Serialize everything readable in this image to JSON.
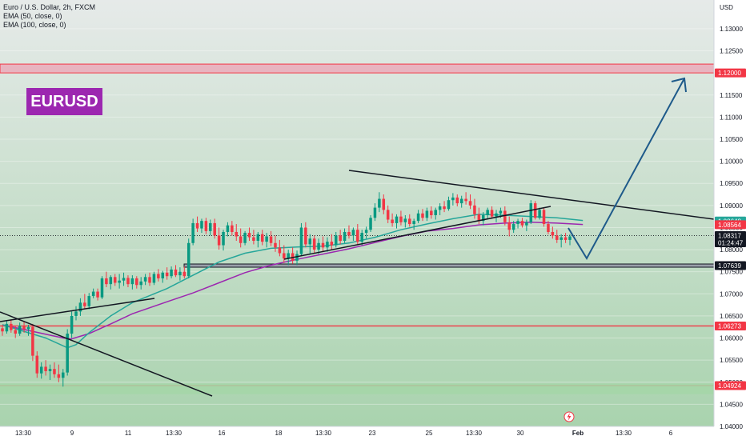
{
  "legend": {
    "symbol_line": "Euro / U.S. Dollar, 2h, FXCM",
    "ema50_line": "EMA (50, close, 0)",
    "ema100_line": "EMA (100, close, 0)"
  },
  "watermark": {
    "text": "EURUSD",
    "color": "#9c27b0"
  },
  "colors": {
    "ema50": "#26a69a",
    "ema100": "#9c27b0",
    "up_candle": "#089981",
    "down_candle": "#f23645",
    "support_red": "#f23645",
    "trend_line": "#131722",
    "projection": "#1e5a8a",
    "green_zone": "#a5d6a7",
    "bg_top": "#e6eae9",
    "bg_bottom": "#a9d3ae"
  },
  "chart_data": {
    "type": "candlestick",
    "currency_label": "USD",
    "ylim": [
      1.04,
      1.1365
    ],
    "y_ticks": [
      "1.13000",
      "1.12500",
      "1.12000",
      "1.11500",
      "1.11000",
      "1.10500",
      "1.10000",
      "1.09500",
      "1.09000",
      "1.08500",
      "1.08000",
      "1.07500",
      "1.07000",
      "1.06500",
      "1.06000",
      "1.05500",
      "1.05000",
      "1.04500",
      "1.04000"
    ],
    "x_ticks": [
      "13:30",
      "9",
      "11",
      "13:30",
      "16",
      "18",
      "13:30",
      "23",
      "25",
      "13:30",
      "30",
      "Feb",
      "13:30",
      "6"
    ],
    "price_tags": [
      {
        "label": "1.12000",
        "value": 1.12,
        "bg": "#f23645",
        "fg": "#ffffff"
      },
      {
        "label": "1.08648",
        "value": 1.08648,
        "bg": "#26a69a",
        "fg": "#ffffff"
      },
      {
        "label": "1.08564",
        "value": 1.08564,
        "bg": "#f23645",
        "fg": "#ffffff"
      },
      {
        "label": "1.08317",
        "value": 1.08317,
        "bg": "#131722",
        "fg": "#ffffff",
        "sub": "01:24:47"
      },
      {
        "label": "1.07639",
        "value": 1.07639,
        "bg": "#131722",
        "fg": "#ffffff"
      },
      {
        "label": "1.06273",
        "value": 1.06273,
        "bg": "#f23645",
        "fg": "#ffffff"
      },
      {
        "label": "1.04924",
        "value": 1.04924,
        "bg": "#f23645",
        "fg": "#ffffff"
      }
    ],
    "last_price": 1.08317,
    "horizontal_levels": [
      {
        "name": "resistance-zone",
        "from": 1.12,
        "to": 1.122,
        "color": "#f23645"
      },
      {
        "name": "support-1.07639",
        "value": 1.07639,
        "color": "#131722"
      },
      {
        "name": "support-1.06273",
        "value": 1.06273,
        "color": "#f23645"
      },
      {
        "name": "support-1.04924",
        "value": 1.04924,
        "color": "#f23645"
      }
    ],
    "green_zone": {
      "from": 1.0473,
      "to": 1.0497
    },
    "ohlc": [
      [
        1.0622,
        1.063,
        1.0605,
        1.0615
      ],
      [
        1.0615,
        1.064,
        1.061,
        1.0632
      ],
      [
        1.0632,
        1.0642,
        1.0612,
        1.0618
      ],
      [
        1.0618,
        1.0628,
        1.06,
        1.061
      ],
      [
        1.061,
        1.0635,
        1.0605,
        1.0628
      ],
      [
        1.0628,
        1.0638,
        1.0612,
        1.062
      ],
      [
        1.062,
        1.063,
        1.0605,
        1.0625
      ],
      [
        1.0625,
        1.0632,
        1.0548,
        1.056
      ],
      [
        1.056,
        1.057,
        1.051,
        1.052
      ],
      [
        1.052,
        1.0545,
        1.0508,
        1.0535
      ],
      [
        1.0535,
        1.055,
        1.0515,
        1.0525
      ],
      [
        1.0525,
        1.054,
        1.0505,
        1.053
      ],
      [
        1.053,
        1.0545,
        1.051,
        1.0518
      ],
      [
        1.0518,
        1.054,
        1.05,
        1.051
      ],
      [
        1.051,
        1.053,
        1.049,
        1.0522
      ],
      [
        1.0522,
        1.062,
        1.0515,
        1.061
      ],
      [
        1.061,
        1.066,
        1.06,
        1.065
      ],
      [
        1.065,
        1.0672,
        1.064,
        1.066
      ],
      [
        1.066,
        1.069,
        1.065,
        1.068
      ],
      [
        1.068,
        1.07,
        1.0665,
        1.0672
      ],
      [
        1.0672,
        1.0702,
        1.0665,
        1.0695
      ],
      [
        1.0695,
        1.0712,
        1.069,
        1.0705
      ],
      [
        1.0705,
        1.0712,
        1.0685,
        1.0692
      ],
      [
        1.0692,
        1.074,
        1.0688,
        1.0735
      ],
      [
        1.0735,
        1.075,
        1.0715,
        1.0722
      ],
      [
        1.0722,
        1.0742,
        1.071,
        1.0738
      ],
      [
        1.0738,
        1.0745,
        1.0718,
        1.0725
      ],
      [
        1.0725,
        1.0745,
        1.0712,
        1.073
      ],
      [
        1.073,
        1.0748,
        1.0718,
        1.0736
      ],
      [
        1.0736,
        1.0742,
        1.0715,
        1.0722
      ],
      [
        1.0722,
        1.0742,
        1.071,
        1.0735
      ],
      [
        1.0735,
        1.074,
        1.0712,
        1.072
      ],
      [
        1.072,
        1.0738,
        1.071,
        1.0728
      ],
      [
        1.0728,
        1.0745,
        1.072,
        1.0738
      ],
      [
        1.0738,
        1.0748,
        1.0718,
        1.0725
      ],
      [
        1.0725,
        1.075,
        1.072,
        1.0745
      ],
      [
        1.0745,
        1.0756,
        1.0728,
        1.0735
      ],
      [
        1.0735,
        1.0752,
        1.0725,
        1.0748
      ],
      [
        1.0748,
        1.076,
        1.0732,
        1.074
      ],
      [
        1.074,
        1.0762,
        1.0735,
        1.0755
      ],
      [
        1.0755,
        1.0765,
        1.0738,
        1.0742
      ],
      [
        1.0742,
        1.076,
        1.073,
        1.075
      ],
      [
        1.075,
        1.0762,
        1.0735,
        1.074
      ],
      [
        1.074,
        1.0825,
        1.0735,
        1.0815
      ],
      [
        1.0815,
        1.087,
        1.081,
        1.086
      ],
      [
        1.086,
        1.0875,
        1.084,
        1.0848
      ],
      [
        1.0848,
        1.087,
        1.0838,
        1.0865
      ],
      [
        1.0865,
        1.0872,
        1.0835,
        1.0842
      ],
      [
        1.0842,
        1.0868,
        1.0832,
        1.086
      ],
      [
        1.086,
        1.087,
        1.0825,
        1.0832
      ],
      [
        1.0832,
        1.085,
        1.08,
        1.081
      ],
      [
        1.081,
        1.0845,
        1.0798,
        1.084
      ],
      [
        1.084,
        1.0862,
        1.083,
        1.0855
      ],
      [
        1.0855,
        1.0865,
        1.0832,
        1.084
      ],
      [
        1.084,
        1.0858,
        1.082,
        1.083
      ],
      [
        1.083,
        1.0848,
        1.0805,
        1.0815
      ],
      [
        1.0815,
        1.0842,
        1.081,
        1.0838
      ],
      [
        1.0838,
        1.085,
        1.082,
        1.0828
      ],
      [
        1.0828,
        1.0845,
        1.0812,
        1.082
      ],
      [
        1.082,
        1.084,
        1.0805,
        1.0835
      ],
      [
        1.0835,
        1.0845,
        1.081,
        1.0818
      ],
      [
        1.0818,
        1.0838,
        1.0805,
        1.083
      ],
      [
        1.083,
        1.0842,
        1.0808,
        1.0815
      ],
      [
        1.0815,
        1.0832,
        1.0795,
        1.0805
      ],
      [
        1.0805,
        1.0822,
        1.0785,
        1.0792
      ],
      [
        1.0792,
        1.081,
        1.077,
        1.078
      ],
      [
        1.078,
        1.08,
        1.0765,
        1.0792
      ],
      [
        1.0792,
        1.0805,
        1.0768,
        1.0775
      ],
      [
        1.0775,
        1.0798,
        1.0765,
        1.079
      ],
      [
        1.079,
        1.086,
        1.0785,
        1.085
      ],
      [
        1.085,
        1.0862,
        1.0805,
        1.0812
      ],
      [
        1.0812,
        1.0835,
        1.079,
        1.0825
      ],
      [
        1.0825,
        1.0832,
        1.0792,
        1.08
      ],
      [
        1.08,
        1.0825,
        1.079,
        1.0815
      ],
      [
        1.0815,
        1.083,
        1.0795,
        1.0805
      ],
      [
        1.0805,
        1.0828,
        1.0795,
        1.0818
      ],
      [
        1.0818,
        1.0835,
        1.08,
        1.081
      ],
      [
        1.081,
        1.084,
        1.0805,
        1.0832
      ],
      [
        1.0832,
        1.0845,
        1.0812,
        1.082
      ],
      [
        1.082,
        1.0848,
        1.0815,
        1.084
      ],
      [
        1.084,
        1.0855,
        1.0825,
        1.0832
      ],
      [
        1.0832,
        1.085,
        1.082,
        1.0845
      ],
      [
        1.0845,
        1.0858,
        1.081,
        1.0818
      ],
      [
        1.0818,
        1.0845,
        1.081,
        1.0838
      ],
      [
        1.0838,
        1.0852,
        1.0825,
        1.0845
      ],
      [
        1.0845,
        1.0878,
        1.084,
        1.0872
      ],
      [
        1.0872,
        1.0905,
        1.0865,
        1.0895
      ],
      [
        1.0895,
        1.093,
        1.0885,
        1.0915
      ],
      [
        1.0915,
        1.0925,
        1.088,
        1.089
      ],
      [
        1.089,
        1.09,
        1.086,
        1.0868
      ],
      [
        1.0868,
        1.0882,
        1.0852,
        1.086
      ],
      [
        1.086,
        1.088,
        1.0848,
        1.0875
      ],
      [
        1.0875,
        1.0888,
        1.0855,
        1.0862
      ],
      [
        1.0862,
        1.0878,
        1.085,
        1.087
      ],
      [
        1.087,
        1.088,
        1.0852,
        1.0858
      ],
      [
        1.0858,
        1.087,
        1.0845,
        1.0865
      ],
      [
        1.0865,
        1.089,
        1.086,
        1.0882
      ],
      [
        1.0882,
        1.0892,
        1.0865,
        1.0872
      ],
      [
        1.0872,
        1.0895,
        1.0865,
        1.0888
      ],
      [
        1.0888,
        1.0898,
        1.087,
        1.0878
      ],
      [
        1.0878,
        1.0895,
        1.0868,
        1.089
      ],
      [
        1.089,
        1.0905,
        1.0878,
        1.0898
      ],
      [
        1.0898,
        1.091,
        1.0885,
        1.0892
      ],
      [
        1.0892,
        1.092,
        1.0888,
        1.0912
      ],
      [
        1.0912,
        1.0928,
        1.09,
        1.0918
      ],
      [
        1.0918,
        1.0925,
        1.0898,
        1.0905
      ],
      [
        1.0905,
        1.0922,
        1.0895,
        1.0915
      ],
      [
        1.0915,
        1.093,
        1.0902,
        1.091
      ],
      [
        1.091,
        1.0925,
        1.0892,
        1.09
      ],
      [
        1.09,
        1.0915,
        1.087,
        1.088
      ],
      [
        1.088,
        1.0895,
        1.0858,
        1.0865
      ],
      [
        1.0865,
        1.0885,
        1.0855,
        1.0878
      ],
      [
        1.0878,
        1.0895,
        1.0868,
        1.089
      ],
      [
        1.089,
        1.0898,
        1.087,
        1.0875
      ],
      [
        1.0875,
        1.089,
        1.0862,
        1.0882
      ],
      [
        1.0882,
        1.0895,
        1.0872,
        1.0888
      ],
      [
        1.0888,
        1.0898,
        1.0855,
        1.0862
      ],
      [
        1.0862,
        1.0875,
        1.083,
        1.0845
      ],
      [
        1.0845,
        1.0865,
        1.0838,
        1.0858
      ],
      [
        1.0858,
        1.087,
        1.0848,
        1.0865
      ],
      [
        1.0865,
        1.0872,
        1.085,
        1.0855
      ],
      [
        1.0855,
        1.0868,
        1.0842,
        1.0862
      ],
      [
        1.0862,
        1.0912,
        1.0858,
        1.0905
      ],
      [
        1.0905,
        1.091,
        1.0868,
        1.0872
      ],
      [
        1.0872,
        1.0895,
        1.0868,
        1.089
      ],
      [
        1.089,
        1.0895,
        1.0852,
        1.0858
      ],
      [
        1.0858,
        1.0865,
        1.0835,
        1.084
      ],
      [
        1.084,
        1.0852,
        1.0825,
        1.0832
      ],
      [
        1.0832,
        1.0845,
        1.0815,
        1.0822
      ],
      [
        1.0822,
        1.0835,
        1.0805,
        1.0828
      ],
      [
        1.0828,
        1.0838,
        1.0815,
        1.0822
      ],
      [
        1.0822,
        1.0835,
        1.081,
        1.083
      ]
    ],
    "ema50": [
      [
        0,
        1.063
      ],
      [
        10,
        1.06
      ],
      [
        15,
        1.0578
      ],
      [
        17,
        1.0585
      ],
      [
        20,
        1.0612
      ],
      [
        25,
        1.065
      ],
      [
        30,
        1.068
      ],
      [
        38,
        1.0712
      ],
      [
        44,
        1.0742
      ],
      [
        50,
        1.0772
      ],
      [
        56,
        1.0792
      ],
      [
        62,
        1.0803
      ],
      [
        68,
        1.0806
      ],
      [
        74,
        1.0808
      ],
      [
        80,
        1.0815
      ],
      [
        86,
        1.0828
      ],
      [
        92,
        1.0845
      ],
      [
        98,
        1.0858
      ],
      [
        104,
        1.087
      ],
      [
        110,
        1.088
      ],
      [
        116,
        1.0878
      ],
      [
        122,
        1.0875
      ],
      [
        128,
        1.0872
      ],
      [
        134,
        1.0866
      ]
    ],
    "ema100": [
      [
        0,
        1.063
      ],
      [
        14,
        1.06
      ],
      [
        16,
        1.0598
      ],
      [
        20,
        1.061
      ],
      [
        25,
        1.0632
      ],
      [
        30,
        1.0655
      ],
      [
        38,
        1.0682
      ],
      [
        44,
        1.0702
      ],
      [
        50,
        1.0725
      ],
      [
        56,
        1.0748
      ],
      [
        62,
        1.0765
      ],
      [
        68,
        1.0778
      ],
      [
        74,
        1.079
      ],
      [
        80,
        1.0802
      ],
      [
        86,
        1.0816
      ],
      [
        92,
        1.083
      ],
      [
        98,
        1.0842
      ],
      [
        104,
        1.0848
      ],
      [
        110,
        1.0856
      ],
      [
        116,
        1.086
      ],
      [
        122,
        1.0862
      ],
      [
        128,
        1.086
      ],
      [
        134,
        1.0857
      ]
    ]
  }
}
